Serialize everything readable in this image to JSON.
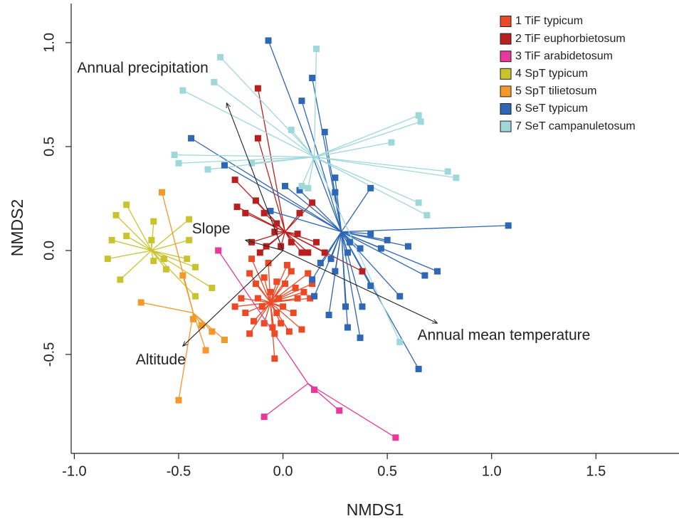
{
  "chart_data": {
    "type": "scatter",
    "x_label": "NMDS1",
    "y_label": "NMDS2",
    "xlim": [
      -1.015,
      1.898
    ],
    "ylim": [
      -0.976,
      1.188
    ],
    "xticks": [
      {
        "value": -1,
        "label": "-1.0"
      },
      {
        "value": -0.5,
        "label": "-0.5"
      },
      {
        "value": 0,
        "label": "0.0"
      },
      {
        "value": 0.5,
        "label": "0.5"
      },
      {
        "value": 1,
        "label": "1.0"
      },
      {
        "value": 1.5,
        "label": "1.5"
      }
    ],
    "yticks": [
      {
        "value": -0.5,
        "label": "-0.5"
      },
      {
        "value": 0,
        "label": "0.0"
      },
      {
        "value": 0.5,
        "label": "0.5"
      },
      {
        "value": 1,
        "label": "1.0"
      }
    ],
    "legend": "top-right",
    "series": [
      {
        "name": "1 TiF typicum",
        "color": "#ec4a26",
        "centroid": [
          -0.06,
          -0.25
        ],
        "x": [
          -0.23,
          -0.2,
          -0.18,
          -0.16,
          -0.15,
          -0.13,
          -0.12,
          -0.09,
          -0.09,
          -0.07,
          -0.06,
          -0.05,
          -0.04,
          -0.03,
          -0.02,
          -0.01,
          0.0,
          0.01,
          0.03,
          0.04,
          0.05,
          0.06,
          0.07,
          0.09,
          0.1,
          0.12,
          0.13,
          0.14,
          -0.14,
          -0.1,
          -0.04,
          -0.16,
          -0.03,
          0.02
        ],
        "y": [
          -0.27,
          -0.23,
          -0.3,
          -0.11,
          -0.04,
          -0.16,
          -0.23,
          -0.35,
          -0.13,
          -0.06,
          -0.2,
          -0.37,
          -0.4,
          -0.3,
          -0.23,
          -0.35,
          -0.27,
          -0.16,
          -0.39,
          -0.1,
          -0.3,
          -0.18,
          -0.23,
          -0.38,
          -0.2,
          -0.11,
          -0.23,
          -0.16,
          -0.34,
          -0.27,
          -0.52,
          -0.4,
          -0.15,
          -0.07
        ]
      },
      {
        "name": "2 TiF euphorbietosum",
        "color": "#b8201f",
        "centroid": [
          0.01,
          0.09
        ],
        "x": [
          -0.12,
          -0.12,
          -0.23,
          -0.22,
          -0.18,
          -0.13,
          -0.09,
          -0.04,
          -0.15,
          -0.11,
          -0.08,
          -0.03,
          -0.01,
          0.04,
          0.07,
          0.09,
          0.12,
          0.14,
          0.16,
          0.2,
          0.38,
          0.08
        ],
        "y": [
          0.78,
          0.54,
          0.34,
          0.21,
          0.18,
          0.24,
          0.18,
          0.09,
          0.04,
          -0.01,
          0.02,
          0.13,
          0.02,
          0.04,
          0.08,
          -0.01,
          -0.01,
          0.23,
          0.04,
          -0.01,
          -0.1,
          0.18
        ]
      },
      {
        "name": "3 TiF arabidetosum",
        "color": "#e8389a",
        "centroid": [
          0.12,
          -0.64
        ],
        "x": [
          -0.31,
          -0.09,
          0.15,
          0.27,
          0.54
        ],
        "y": [
          0.0,
          -0.8,
          -0.67,
          -0.77,
          -0.9
        ]
      },
      {
        "name": "4 SpT typicum",
        "color": "#c9c42e",
        "centroid": [
          -0.63,
          0.0
        ],
        "x": [
          -0.8,
          -0.75,
          -0.82,
          -0.75,
          -0.84,
          -0.78,
          -0.62,
          -0.63,
          -0.62,
          -0.56,
          -0.45,
          -0.45,
          -0.46,
          -0.42,
          -0.42,
          -0.34,
          -0.57
        ],
        "y": [
          0.17,
          0.22,
          0.05,
          0.07,
          -0.04,
          -0.14,
          0.14,
          0.05,
          -0.05,
          -0.09,
          0.15,
          0.05,
          -0.04,
          -0.08,
          -0.22,
          -0.18,
          -0.04
        ]
      },
      {
        "name": "5 SpT tilietosum",
        "color": "#f4982a",
        "centroid": [
          -0.43,
          -0.3
        ],
        "x": [
          -0.58,
          -0.48,
          -0.68,
          -0.43,
          -0.39,
          -0.34,
          -0.28,
          -0.37,
          -0.5
        ],
        "y": [
          0.28,
          -0.12,
          -0.25,
          -0.33,
          -0.36,
          -0.39,
          -0.43,
          -0.48,
          -0.72
        ]
      },
      {
        "name": "6 SeT typicum",
        "color": "#2e67b4",
        "centroid": [
          0.28,
          0.09
        ],
        "x": [
          -0.07,
          0.14,
          0.09,
          0.2,
          -0.44,
          -0.28,
          0.01,
          -0.06,
          0.08,
          0.25,
          0.42,
          0.25,
          1.08,
          0.42,
          0.5,
          0.6,
          0.47,
          0.37,
          0.31,
          0.23,
          0.25,
          0.14,
          0.68,
          0.74,
          0.42,
          0.56,
          0.15,
          0.3,
          0.38,
          0.22,
          0.31,
          0.37,
          0.65,
          0.18,
          0.32
        ],
        "y": [
          1.01,
          0.83,
          0.72,
          0.57,
          0.54,
          0.41,
          0.31,
          0.19,
          0.29,
          0.35,
          0.3,
          0.28,
          0.12,
          0.08,
          0.05,
          0.02,
          0.01,
          0.01,
          -0.01,
          -0.04,
          -0.1,
          -0.14,
          -0.12,
          -0.1,
          -0.17,
          -0.22,
          -0.22,
          -0.27,
          -0.27,
          -0.31,
          -0.37,
          -0.42,
          -0.57,
          -0.06,
          0.04
        ]
      },
      {
        "name": "7 SeT campanuletosum",
        "color": "#9fd8da",
        "centroid": [
          0.15,
          0.45
        ],
        "x": [
          -0.3,
          0.16,
          -0.33,
          -0.48,
          0.04,
          0.65,
          0.66,
          0.52,
          -0.52,
          -0.5,
          -0.36,
          -0.15,
          0.79,
          0.83,
          0.12,
          0.09,
          0.65,
          0.69,
          0.56
        ],
        "y": [
          0.93,
          0.97,
          0.81,
          0.77,
          0.58,
          0.65,
          0.62,
          0.52,
          0.46,
          0.42,
          0.39,
          0.42,
          0.38,
          0.35,
          0.3,
          0.31,
          0.23,
          0.17,
          -0.44
        ]
      }
    ],
    "arrows": [
      {
        "label": "Annual precipitation",
        "x": -0.27,
        "y": 0.71
      },
      {
        "label": "Slope",
        "x": -0.18,
        "y": 0.05
      },
      {
        "label": "Annual mean temperature",
        "x": 0.74,
        "y": -0.35
      },
      {
        "label": "Altitude",
        "x": -0.48,
        "y": -0.46
      }
    ]
  }
}
